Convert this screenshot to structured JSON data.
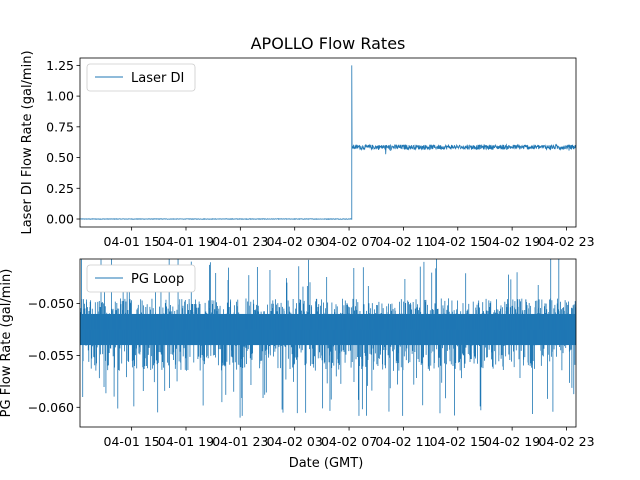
{
  "chart_data": [
    {
      "type": "line",
      "title": "APOLLO Flow Rates",
      "xlabel": "",
      "ylabel": "Laser DI Flow Rate (gal/min)",
      "x_ticks": [
        "04-01 15",
        "04-01 19",
        "04-01 23",
        "04-02 03",
        "04-02 07",
        "04-02 11",
        "04-02 15",
        "04-02 19",
        "04-02 23"
      ],
      "x_tick_hours": [
        15,
        19,
        23,
        27,
        31,
        35,
        39,
        43,
        47
      ],
      "xlim_hours": [
        11.2,
        47.7
      ],
      "ylim": [
        -0.065,
        1.31
      ],
      "y_ticks": [
        0.0,
        0.25,
        0.5,
        0.75,
        1.0,
        1.25
      ],
      "y_tick_labels": [
        "0.00",
        "0.25",
        "0.50",
        "0.75",
        "1.00",
        "1.25"
      ],
      "legend": "top-left",
      "series": [
        {
          "name": "Laser DI",
          "color": "#1f77b4",
          "segments": [
            {
              "start_hour": 11.2,
              "end_hour": 31.2,
              "level": 0.0,
              "noise": 0.002
            },
            {
              "start_hour": 31.2,
              "end_hour": 31.22,
              "spike": 1.25
            },
            {
              "start_hour": 31.22,
              "end_hour": 47.7,
              "level": 0.585,
              "noise": 0.02
            }
          ]
        }
      ]
    },
    {
      "type": "line",
      "title": "",
      "xlabel": "Date (GMT)",
      "ylabel": "PG Flow Rate (gal/min)",
      "x_ticks": [
        "04-01 15",
        "04-01 19",
        "04-01 23",
        "04-02 03",
        "04-02 07",
        "04-02 11",
        "04-02 15",
        "04-02 19",
        "04-02 23"
      ],
      "x_tick_hours": [
        15,
        19,
        23,
        27,
        31,
        35,
        39,
        43,
        47
      ],
      "xlim_hours": [
        11.2,
        47.7
      ],
      "ylim": [
        -0.0619,
        -0.0457
      ],
      "y_ticks": [
        -0.05,
        -0.055,
        -0.06
      ],
      "y_tick_labels": [
        "−0.050",
        "−0.055",
        "−0.060"
      ],
      "legend": "top-left",
      "series": [
        {
          "name": "PG Loop",
          "color": "#1f77b4",
          "band": [
            -0.054,
            -0.051
          ],
          "outlier_range": [
            -0.061,
            -0.0455
          ]
        }
      ]
    }
  ]
}
